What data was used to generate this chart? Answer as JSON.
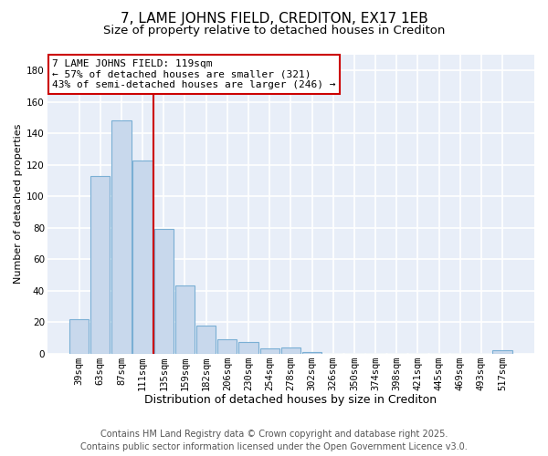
{
  "title": "7, LAME JOHNS FIELD, CREDITON, EX17 1EB",
  "subtitle": "Size of property relative to detached houses in Crediton",
  "bar_labels": [
    "39sqm",
    "63sqm",
    "87sqm",
    "111sqm",
    "135sqm",
    "159sqm",
    "182sqm",
    "206sqm",
    "230sqm",
    "254sqm",
    "278sqm",
    "302sqm",
    "326sqm",
    "350sqm",
    "374sqm",
    "398sqm",
    "421sqm",
    "445sqm",
    "469sqm",
    "493sqm",
    "517sqm"
  ],
  "bar_values": [
    22,
    113,
    148,
    123,
    79,
    43,
    18,
    9,
    7,
    3,
    4,
    1,
    0,
    0,
    0,
    0,
    0,
    0,
    0,
    0,
    2
  ],
  "bar_color": "#c8d8ec",
  "bar_edge_color": "#7aafd4",
  "vline_color": "#cc0000",
  "ylim": [
    0,
    190
  ],
  "yticks": [
    0,
    20,
    40,
    60,
    80,
    100,
    120,
    140,
    160,
    180
  ],
  "xlabel": "Distribution of detached houses by size in Crediton",
  "ylabel": "Number of detached properties",
  "annotation_title": "7 LAME JOHNS FIELD: 119sqm",
  "annotation_line1": "← 57% of detached houses are smaller (321)",
  "annotation_line2": "43% of semi-detached houses are larger (246) →",
  "annotation_box_color": "#ffffff",
  "annotation_box_edge": "#cc0000",
  "footer_line1": "Contains HM Land Registry data © Crown copyright and database right 2025.",
  "footer_line2": "Contains public sector information licensed under the Open Government Licence v3.0.",
  "bg_color": "#ffffff",
  "plot_bg_color": "#e8eef8",
  "grid_color": "#ffffff",
  "title_fontsize": 11,
  "subtitle_fontsize": 9.5,
  "xlabel_fontsize": 9,
  "ylabel_fontsize": 8,
  "tick_fontsize": 7.5,
  "annot_fontsize": 8,
  "footer_fontsize": 7
}
